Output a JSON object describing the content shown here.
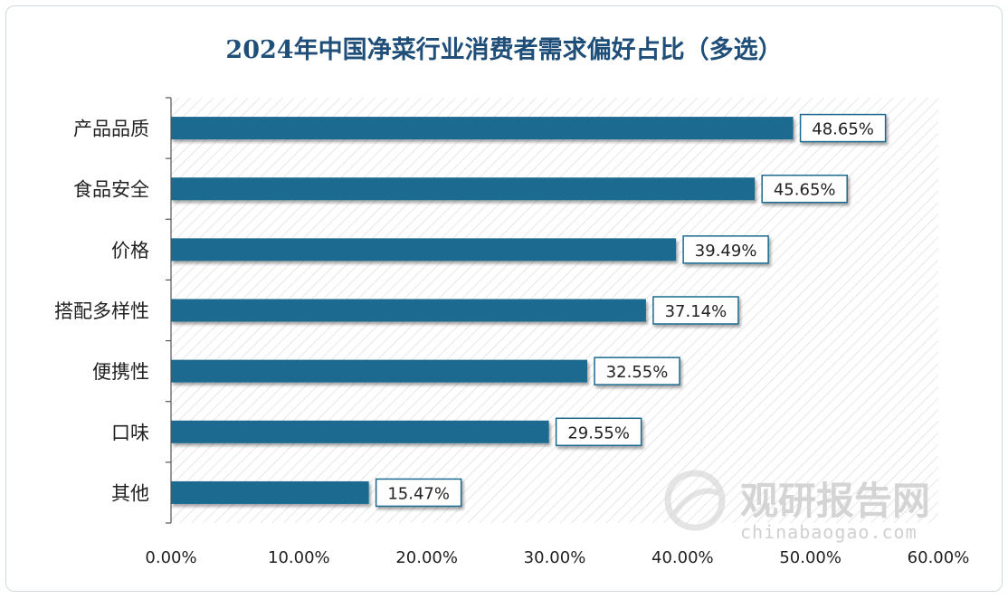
{
  "chart_data": {
    "type": "bar",
    "orientation": "horizontal",
    "title": "2024年中国净菜行业消费者需求偏好占比（多选）",
    "categories": [
      "产品品质",
      "食品安全",
      "价格",
      "搭配多样性",
      "便携性",
      "口味",
      "其他"
    ],
    "values": [
      48.65,
      45.65,
      39.49,
      37.14,
      32.55,
      29.55,
      15.47
    ],
    "data_labels": [
      "48.65%",
      "45.65%",
      "39.49%",
      "37.14%",
      "32.55%",
      "29.55%",
      "15.47%"
    ],
    "x_ticks": [
      "0.00%",
      "10.00%",
      "20.00%",
      "30.00%",
      "40.00%",
      "50.00%",
      "60.00%"
    ],
    "xlim": [
      0,
      60
    ],
    "xlabel": "",
    "ylabel": "",
    "grid": false,
    "legend": "none",
    "bar_color": "#1a6a90"
  },
  "watermark": {
    "main": "观研报告网",
    "sub": "chinabaogao.com"
  }
}
